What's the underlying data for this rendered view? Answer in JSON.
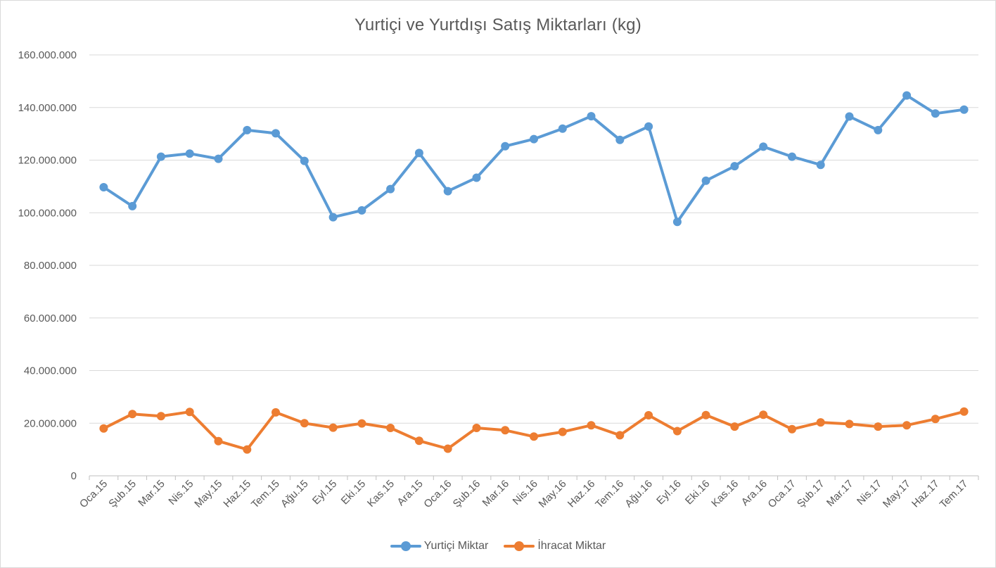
{
  "chart_data": {
    "type": "line",
    "title": "Yurtiçi ve Yurtdışı Satış Miktarları (kg)",
    "categories": [
      "Oca.15",
      "Şub.15",
      "Mar.15",
      "Nis.15",
      "May.15",
      "Haz.15",
      "Tem.15",
      "Ağu.15",
      "Eyl.15",
      "Eki.15",
      "Kas.15",
      "Ara.15",
      "Oca.16",
      "Şub.16",
      "Mar.16",
      "Nis.16",
      "May.16",
      "Haz.16",
      "Tem.16",
      "Ağu.16",
      "Eyl.16",
      "Eki.16",
      "Kas.16",
      "Ara.16",
      "Oca.17",
      "Şub.17",
      "Mar.17",
      "Nis.17",
      "May.17",
      "Haz.17",
      "Tem.17"
    ],
    "y_ticks": [
      "0",
      "20.000.000",
      "40.000.000",
      "60.000.000",
      "80.000.000",
      "100.000.000",
      "120.000.000",
      "140.000.000",
      "160.000.000"
    ],
    "ylim": [
      0,
      160000000
    ],
    "grid": true,
    "legend_position": "bottom",
    "series": [
      {
        "name": "Yurtiçi Miktar",
        "color": "#5b9bd5",
        "values": [
          109700000,
          102500000,
          121300000,
          122500000,
          120500000,
          131400000,
          130200000,
          119700000,
          98300000,
          100900000,
          109000000,
          122700000,
          108200000,
          113300000,
          125300000,
          128000000,
          132000000,
          136700000,
          127700000,
          132800000,
          96500000,
          112200000,
          117700000,
          125100000,
          121300000,
          118200000,
          136600000,
          131400000,
          144600000,
          137700000,
          139200000
        ]
      },
      {
        "name": "İhracat Miktar",
        "color": "#ed7d31",
        "values": [
          18000000,
          23500000,
          22700000,
          24300000,
          13200000,
          10000000,
          24100000,
          20000000,
          18300000,
          19900000,
          18200000,
          13300000,
          10300000,
          18200000,
          17300000,
          14900000,
          16700000,
          19200000,
          15400000,
          23000000,
          17000000,
          23100000,
          18700000,
          23200000,
          17700000,
          20300000,
          19700000,
          18700000,
          19200000,
          21600000,
          24400000
        ]
      }
    ]
  }
}
